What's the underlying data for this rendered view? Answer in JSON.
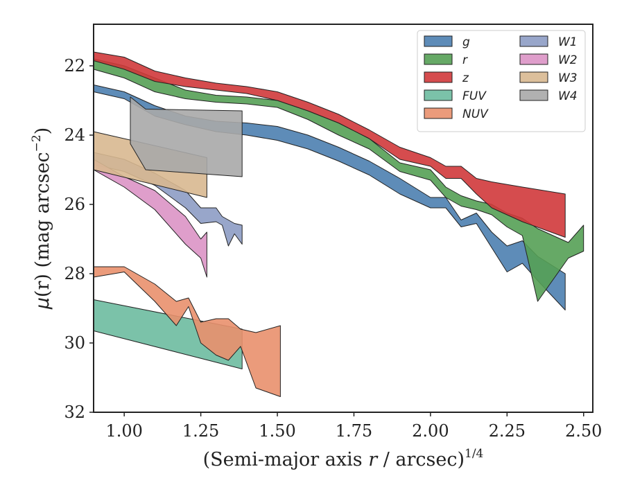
{
  "chart_data": {
    "type": "area",
    "title": "",
    "xlabel_main": "(Semi-major axis ",
    "xlabel_var": "r",
    "xlabel_tail": " / arcsec)",
    "xlabel_sup": "1/4",
    "ylabel_mu": "μ",
    "ylabel_r": "(r)",
    "ylabel_unit": " (mag arcsec",
    "ylabel_sup": "−2",
    "ylabel_close": ")",
    "xlim": [
      0.9,
      2.53
    ],
    "ylim": [
      32.0,
      20.8
    ],
    "y_inverted": true,
    "x_ticks": [
      1.0,
      1.25,
      1.5,
      1.75,
      2.0,
      2.25,
      2.5
    ],
    "x_tick_labels": [
      "1.00",
      "1.25",
      "1.50",
      "1.75",
      "2.00",
      "2.25",
      "2.50"
    ],
    "y_ticks": [
      22,
      24,
      26,
      28,
      30,
      32
    ],
    "y_tick_labels": [
      "22",
      "24",
      "26",
      "28",
      "30",
      "32"
    ],
    "grid": false,
    "legend_position": "top-right",
    "legend_columns": 2,
    "series": [
      {
        "name": "g",
        "color": "#4c7fb0",
        "x": [
          0.9,
          1.0,
          1.1,
          1.2,
          1.3,
          1.4,
          1.5,
          1.6,
          1.7,
          1.8,
          1.9,
          2.0,
          2.05,
          2.1,
          2.15,
          2.2,
          2.25,
          2.3,
          2.35,
          2.44
        ],
        "lower": [
          22.55,
          22.75,
          23.15,
          23.45,
          23.6,
          23.65,
          23.75,
          24.0,
          24.35,
          24.75,
          25.25,
          25.8,
          25.8,
          26.45,
          26.25,
          26.8,
          27.2,
          27.05,
          27.5,
          28.0
        ],
        "upper": [
          22.75,
          22.95,
          23.45,
          23.7,
          23.9,
          24.0,
          24.15,
          24.4,
          24.75,
          25.15,
          25.7,
          26.1,
          26.1,
          26.65,
          26.55,
          27.25,
          27.95,
          27.7,
          28.2,
          29.05
        ]
      },
      {
        "name": "r",
        "color": "#55a055",
        "x": [
          0.9,
          1.0,
          1.1,
          1.2,
          1.3,
          1.4,
          1.5,
          1.6,
          1.7,
          1.8,
          1.9,
          2.0,
          2.05,
          2.1,
          2.15,
          2.2,
          2.25,
          2.3,
          2.35,
          2.45,
          2.5
        ],
        "lower": [
          21.8,
          22.0,
          22.35,
          22.7,
          22.85,
          22.9,
          23.0,
          23.3,
          23.65,
          24.1,
          24.8,
          25.0,
          25.5,
          25.75,
          25.9,
          26.0,
          26.25,
          26.4,
          26.7,
          27.1,
          26.6
        ],
        "upper": [
          22.1,
          22.35,
          22.75,
          22.95,
          23.05,
          23.1,
          23.2,
          23.55,
          24.0,
          24.4,
          25.05,
          25.3,
          25.8,
          26.05,
          26.15,
          26.3,
          26.65,
          26.9,
          28.8,
          27.55,
          27.35
        ]
      },
      {
        "name": "z",
        "color": "#d0393b",
        "x": [
          0.9,
          1.0,
          1.1,
          1.2,
          1.3,
          1.4,
          1.5,
          1.6,
          1.7,
          1.8,
          1.9,
          2.0,
          2.05,
          2.1,
          2.15,
          2.2,
          2.3,
          2.44
        ],
        "lower": [
          21.6,
          21.75,
          22.15,
          22.35,
          22.5,
          22.6,
          22.75,
          23.05,
          23.4,
          23.85,
          24.35,
          24.65,
          24.9,
          24.9,
          25.25,
          25.35,
          25.5,
          25.7
        ],
        "upper": [
          21.85,
          22.1,
          22.45,
          22.6,
          22.7,
          22.8,
          23.0,
          23.3,
          23.65,
          24.1,
          24.7,
          24.9,
          25.25,
          25.25,
          25.7,
          26.1,
          26.5,
          26.95
        ]
      },
      {
        "name": "FUV",
        "color": "#6dbba0",
        "x": [
          0.9,
          1.385
        ],
        "lower": [
          28.75,
          29.6
        ],
        "upper": [
          29.65,
          30.75
        ]
      },
      {
        "name": "NUV",
        "color": "#e9906d",
        "x": [
          0.9,
          1.0,
          1.1,
          1.17,
          1.21,
          1.25,
          1.3,
          1.34,
          1.38,
          1.43,
          1.51
        ],
        "lower": [
          27.8,
          27.8,
          28.3,
          28.8,
          28.7,
          29.4,
          29.3,
          29.3,
          29.6,
          29.7,
          29.5
        ],
        "upper": [
          28.1,
          27.95,
          28.8,
          29.5,
          28.95,
          30.0,
          30.35,
          30.5,
          30.1,
          31.3,
          31.55
        ]
      },
      {
        "name": "W1",
        "color": "#8d9cc4",
        "x": [
          0.9,
          1.0,
          1.1,
          1.2,
          1.25,
          1.3,
          1.32,
          1.34,
          1.36,
          1.385
        ],
        "lower": [
          24.5,
          24.7,
          25.1,
          25.6,
          26.1,
          26.1,
          26.35,
          26.45,
          26.55,
          26.6
        ],
        "upper": [
          24.85,
          25.05,
          25.45,
          26.1,
          26.55,
          26.5,
          26.6,
          27.2,
          26.85,
          27.15
        ]
      },
      {
        "name": "W2",
        "color": "#dc93c5",
        "x": [
          0.9,
          1.0,
          1.1,
          1.2,
          1.25,
          1.27
        ],
        "lower": [
          24.7,
          25.2,
          25.6,
          26.35,
          27.0,
          26.8
        ],
        "upper": [
          25.0,
          25.5,
          26.15,
          27.15,
          27.55,
          28.1
        ]
      },
      {
        "name": "W3",
        "color": "#d8b890",
        "x": [
          0.9,
          1.27
        ],
        "lower": [
          23.9,
          24.65
        ],
        "upper": [
          25.0,
          25.8
        ]
      },
      {
        "name": "W4",
        "color": "#a8a8a8",
        "x": [
          1.02,
          1.07,
          1.385
        ],
        "lower": [
          22.9,
          23.25,
          23.3
        ],
        "upper": [
          24.25,
          25.0,
          25.2
        ]
      }
    ]
  }
}
